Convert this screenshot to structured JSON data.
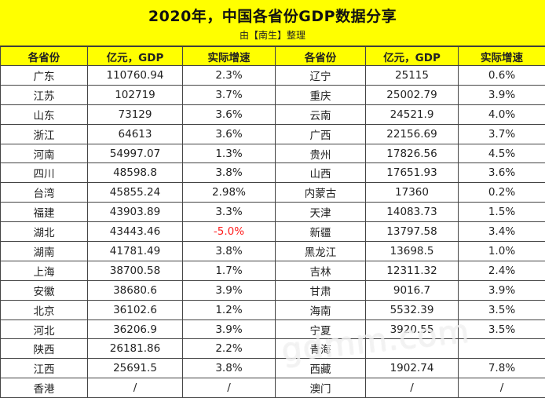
{
  "title": "2020年，中国各省份GDP数据分享",
  "subtitle": "由【南生】整理",
  "headers": [
    "各省份",
    "亿元，GDP",
    "实际增速",
    "各省份",
    "亿元，GDP",
    "实际增速"
  ],
  "rows": [
    [
      "广东",
      "110760.94",
      "2.3%",
      "辽宁",
      "25115",
      "0.6%"
    ],
    [
      "江苏",
      "102719",
      "3.7%",
      "重庆",
      "25002.79",
      "3.9%"
    ],
    [
      "山东",
      "73129",
      "3.6%",
      "云南",
      "24521.9",
      "4.0%"
    ],
    [
      "浙江",
      "64613",
      "3.6%",
      "广西",
      "22156.69",
      "3.7%"
    ],
    [
      "河南",
      "54997.07",
      "1.3%",
      "贵州",
      "17826.56",
      "4.5%"
    ],
    [
      "四川",
      "48598.8",
      "3.8%",
      "山西",
      "17651.93",
      "3.6%"
    ],
    [
      "台湾",
      "45855.24",
      "2.98%",
      "内蒙古",
      "17360",
      "0.2%"
    ],
    [
      "福建",
      "43903.89",
      "3.3%",
      "天津",
      "14083.73",
      "1.5%"
    ],
    [
      "湖北",
      "43443.46",
      "-5.0%",
      "新疆",
      "13797.58",
      "3.4%"
    ],
    [
      "湖南",
      "41781.49",
      "3.8%",
      "黑龙江",
      "13698.5",
      "1.0%"
    ],
    [
      "上海",
      "38700.58",
      "1.7%",
      "吉林",
      "12311.32",
      "2.4%"
    ],
    [
      "安徽",
      "38680.6",
      "3.9%",
      "甘肃",
      "9016.7",
      "3.9%"
    ],
    [
      "北京",
      "36102.6",
      "1.2%",
      "海南",
      "5532.39",
      "3.5%"
    ],
    [
      "河北",
      "36206.9",
      "3.9%",
      "宁夏",
      "3920.55",
      "3.5%"
    ],
    [
      "陕西",
      "26181.86",
      "2.2%",
      "青海",
      "",
      ""
    ],
    [
      "江西",
      "25691.5",
      "3.8%",
      "西藏",
      "1902.74",
      "7.8%"
    ],
    [
      "香港",
      "/",
      "/",
      "澳门",
      "/",
      "/"
    ]
  ],
  "negative_color": "#ff1a1a",
  "header_color": "#ffff00",
  "watermark": "gdmm.com"
}
